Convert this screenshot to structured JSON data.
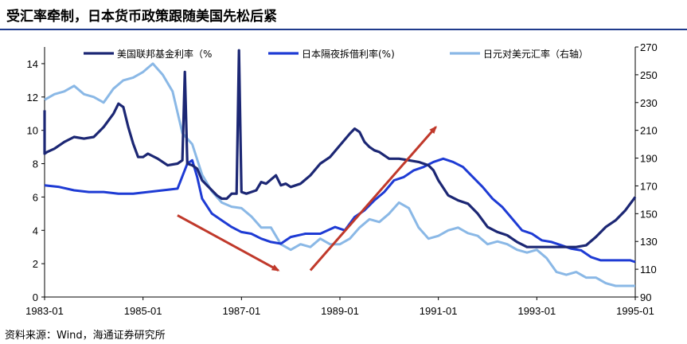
{
  "page": {
    "title": "受汇率牵制，日本货币政策跟随美国先松后紧",
    "source": "资料来源：Wind，海通证券研究所"
  },
  "colors": {
    "fedfunds": "#1C2774",
    "japan_rate": "#1E3BD4",
    "usdjpy": "#8AB8E6",
    "arrow": "#C0392B",
    "rule": "#1F3B8C"
  },
  "chart_data": {
    "type": "line",
    "title": "受汇率牵制，日本货币政策跟随美国先松后紧",
    "x_ticks": [
      1983,
      1985,
      1987,
      1989,
      1991,
      1993,
      1995
    ],
    "x_tick_labels": [
      "1983-01",
      "1985-01",
      "1987-01",
      "1989-01",
      "1991-01",
      "1993-01",
      "1995-01"
    ],
    "xlim": [
      1983.0,
      1995.0
    ],
    "ylim_left": [
      0,
      15
    ],
    "y_ticks_left": [
      0,
      2,
      4,
      6,
      8,
      10,
      12,
      14
    ],
    "ylim_right": [
      90,
      270
    ],
    "y_ticks_right": [
      90,
      110,
      130,
      150,
      170,
      190,
      210,
      230,
      250,
      270
    ],
    "legend": [
      "美国联邦基金利率（%",
      "日本隔夜拆借利率(%)",
      "日元对美元汇率（右轴）"
    ],
    "series": [
      {
        "name": "美国联邦基金利率（%",
        "axis": "left",
        "x": [
          1983.0,
          1983.0,
          1983.05,
          1983.2,
          1983.4,
          1983.6,
          1983.8,
          1984.0,
          1984.2,
          1984.4,
          1984.5,
          1984.6,
          1984.7,
          1984.8,
          1984.9,
          1985.0,
          1985.1,
          1985.3,
          1985.5,
          1985.7,
          1985.8,
          1985.85,
          1985.9,
          1986.0,
          1986.1,
          1986.2,
          1986.3,
          1986.4,
          1986.5,
          1986.6,
          1986.7,
          1986.8,
          1986.9,
          1986.95,
          1987.0,
          1987.1,
          1987.2,
          1987.3,
          1987.4,
          1987.5,
          1987.7,
          1987.8,
          1987.9,
          1988.0,
          1988.2,
          1988.4,
          1988.6,
          1988.8,
          1989.0,
          1989.2,
          1989.3,
          1989.4,
          1989.5,
          1989.6,
          1989.7,
          1989.8,
          1990.0,
          1990.2,
          1990.4,
          1990.6,
          1990.8,
          1990.9,
          1991.0,
          1991.2,
          1991.4,
          1991.6,
          1991.8,
          1992.0,
          1992.2,
          1992.4,
          1992.6,
          1992.8,
          1993.0,
          1993.2,
          1993.4,
          1993.6,
          1993.8,
          1994.0,
          1994.2,
          1994.4,
          1994.6,
          1994.8,
          1995.0
        ],
        "values": [
          11.2,
          8.6,
          8.7,
          8.9,
          9.3,
          9.6,
          9.5,
          9.6,
          10.2,
          11.0,
          11.6,
          11.4,
          10.2,
          9.2,
          8.4,
          8.4,
          8.6,
          8.3,
          7.9,
          8.0,
          8.2,
          13.5,
          8.0,
          7.9,
          7.7,
          7.0,
          6.7,
          6.4,
          6.1,
          5.9,
          5.9,
          6.2,
          6.2,
          14.8,
          6.3,
          6.2,
          6.3,
          6.4,
          6.9,
          6.8,
          7.3,
          6.7,
          6.8,
          6.6,
          6.8,
          7.3,
          8.0,
          8.4,
          9.1,
          9.8,
          10.1,
          9.9,
          9.3,
          9.0,
          8.8,
          8.7,
          8.3,
          8.3,
          8.2,
          8.1,
          7.9,
          7.6,
          7.0,
          6.1,
          5.8,
          5.6,
          5.0,
          4.2,
          3.9,
          3.7,
          3.3,
          3.0,
          3.0,
          3.0,
          3.0,
          3.0,
          3.0,
          3.1,
          3.6,
          4.2,
          4.6,
          5.2,
          6.0
        ]
      },
      {
        "name": "日本隔夜拆借利率(%)",
        "axis": "left",
        "x": [
          1983.0,
          1983.3,
          1983.6,
          1983.9,
          1984.2,
          1984.5,
          1984.8,
          1985.1,
          1985.4,
          1985.7,
          1985.9,
          1986.0,
          1986.1,
          1986.2,
          1986.4,
          1986.6,
          1986.8,
          1987.0,
          1987.2,
          1987.4,
          1987.6,
          1987.8,
          1988.0,
          1988.3,
          1988.6,
          1988.9,
          1989.1,
          1989.3,
          1989.5,
          1989.7,
          1989.9,
          1990.1,
          1990.3,
          1990.5,
          1990.7,
          1990.9,
          1991.1,
          1991.3,
          1991.5,
          1991.7,
          1991.9,
          1992.1,
          1992.3,
          1992.5,
          1992.7,
          1992.9,
          1993.1,
          1993.3,
          1993.5,
          1993.7,
          1993.9,
          1994.1,
          1994.3,
          1994.5,
          1994.7,
          1994.9,
          1995.0
        ],
        "values": [
          6.7,
          6.6,
          6.4,
          6.3,
          6.3,
          6.2,
          6.2,
          6.3,
          6.4,
          6.5,
          8.0,
          8.2,
          7.2,
          5.9,
          5.0,
          4.6,
          4.2,
          3.9,
          3.8,
          3.5,
          3.3,
          3.2,
          3.6,
          3.8,
          3.8,
          4.2,
          4.0,
          4.8,
          5.2,
          5.8,
          6.3,
          7.0,
          7.2,
          7.6,
          7.8,
          8.1,
          8.3,
          8.1,
          7.8,
          7.2,
          6.6,
          5.9,
          5.4,
          4.7,
          4.0,
          3.8,
          3.4,
          3.3,
          3.1,
          2.9,
          2.8,
          2.4,
          2.2,
          2.2,
          2.2,
          2.2,
          2.1
        ]
      },
      {
        "name": "日元对美元汇率（右轴）",
        "axis": "right",
        "x": [
          1983.0,
          1983.2,
          1983.4,
          1983.6,
          1983.8,
          1984.0,
          1984.2,
          1984.4,
          1984.6,
          1984.8,
          1985.0,
          1985.2,
          1985.4,
          1985.6,
          1985.8,
          1986.0,
          1986.2,
          1986.4,
          1986.6,
          1986.8,
          1987.0,
          1987.2,
          1987.4,
          1987.6,
          1987.8,
          1988.0,
          1988.2,
          1988.4,
          1988.6,
          1988.8,
          1989.0,
          1989.2,
          1989.4,
          1989.6,
          1989.8,
          1990.0,
          1990.2,
          1990.4,
          1990.6,
          1990.8,
          1991.0,
          1991.2,
          1991.4,
          1991.6,
          1991.8,
          1992.0,
          1992.2,
          1992.4,
          1992.6,
          1992.8,
          1993.0,
          1993.2,
          1993.4,
          1993.6,
          1993.8,
          1994.0,
          1994.2,
          1994.4,
          1994.6,
          1994.8,
          1995.0
        ],
        "values": [
          232,
          236,
          238,
          242,
          236,
          234,
          230,
          240,
          246,
          248,
          252,
          258,
          250,
          238,
          208,
          200,
          178,
          166,
          158,
          155,
          154,
          148,
          140,
          140,
          128,
          124,
          128,
          126,
          132,
          128,
          128,
          132,
          140,
          146,
          144,
          150,
          158,
          154,
          140,
          132,
          134,
          138,
          140,
          136,
          134,
          128,
          130,
          128,
          124,
          122,
          124,
          118,
          108,
          106,
          108,
          104,
          104,
          100,
          98,
          98,
          98
        ]
      }
    ],
    "annotations": [
      {
        "type": "arrow",
        "from": [
          1985.7,
          4.9
        ],
        "to": [
          1987.75,
          1.6
        ]
      },
      {
        "type": "arrow",
        "from": [
          1988.4,
          1.6
        ],
        "to": [
          1990.95,
          10.2
        ]
      }
    ]
  }
}
